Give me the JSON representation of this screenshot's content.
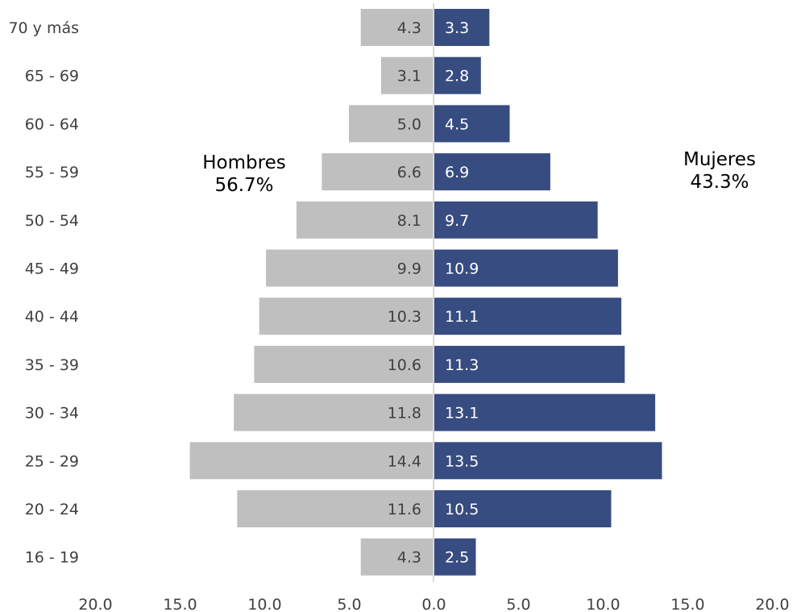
{
  "chart_data": {
    "type": "bar",
    "orientation": "horizontal-population-pyramid",
    "categories": [
      "70 y más",
      "65 - 69",
      "60 - 64",
      "55 - 59",
      "50 - 54",
      "45 - 49",
      "40 - 44",
      "35 - 39",
      "30 - 34",
      "25 - 29",
      "20 - 24",
      "16 - 19"
    ],
    "series": [
      {
        "name": "Hombres",
        "color": "#bfbfbf",
        "values": [
          4.3,
          3.1,
          5.0,
          6.6,
          8.1,
          9.9,
          10.3,
          10.6,
          11.8,
          14.4,
          11.6,
          4.3
        ],
        "labels": [
          "4.3",
          "3.1",
          "5.0",
          "6.6",
          "8.1",
          "9.9",
          "10.3",
          "10.6",
          "11.8",
          "14.4",
          "11.6",
          "4.3"
        ]
      },
      {
        "name": "Mujeres",
        "color": "#374c80",
        "values": [
          3.3,
          2.8,
          4.5,
          6.9,
          9.7,
          10.9,
          11.1,
          11.3,
          13.1,
          13.5,
          10.5,
          2.5
        ],
        "labels": [
          "3.3",
          "2.8",
          "4.5",
          "6.9",
          "9.7",
          "10.9",
          "11.1",
          "11.3",
          "13.1",
          "13.5",
          "10.5",
          "2.5"
        ]
      }
    ],
    "xlim": [
      -20,
      20
    ],
    "x_ticks": [
      "20.0",
      "15.0",
      "10.0",
      "5.0",
      "0.0",
      "5.0",
      "10.0",
      "15.0",
      "20.0"
    ],
    "grid": false,
    "annotations": {
      "men": {
        "title": "Hombres",
        "share": "56.7%"
      },
      "women": {
        "title": "Mujeres",
        "share": "43.3%"
      }
    }
  }
}
